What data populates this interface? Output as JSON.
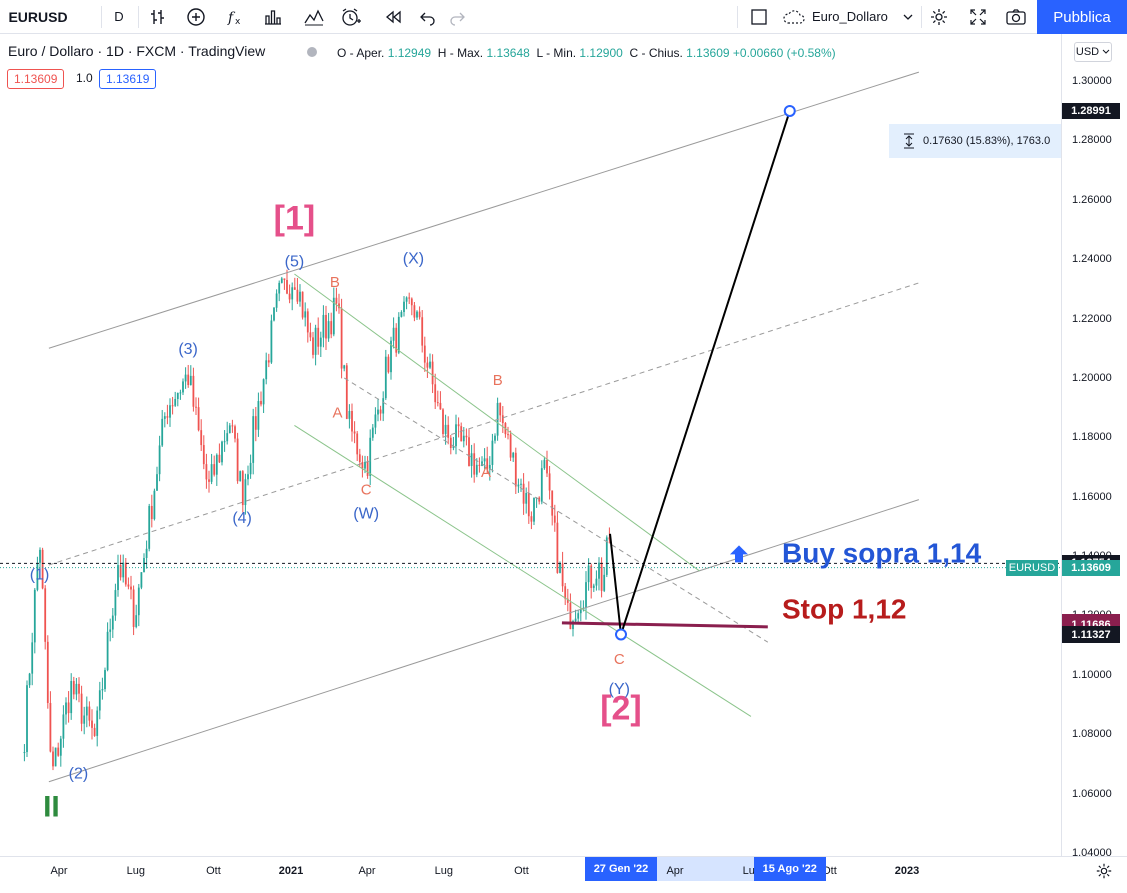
{
  "toolbar": {
    "symbol": "EURUSD",
    "interval": "D",
    "layout_name": "Euro_Dollaro",
    "publish_label": "Pubblica"
  },
  "legend": {
    "title": "Euro / Dollaro · 1D · FXCM · TradingView",
    "open_label": "O - Aper.",
    "open": "1.12949",
    "high_label": "H - Max.",
    "high": "1.13648",
    "low_label": "L - Min.",
    "low": "1.12900",
    "close_label": "C - Chius.",
    "close": "1.13609",
    "change": "+0.00660 (+0.58%)",
    "sell": "1.13609",
    "spread": "1.0",
    "buy": "1.13619"
  },
  "currency": "USD",
  "range_measure": "0.17630 (15.83%), 1763.0",
  "colors": {
    "up": "#26a69a",
    "down": "#ef5350",
    "wave_blue": "#3a66c9",
    "wave_red": "#e8735d",
    "wave_pink": "#e5508a",
    "wave_green": "#2e8b3e",
    "buy_text": "#2356d6",
    "stop_text": "#b71c1c",
    "stop_line": "#8a1f4e",
    "channel_green": "#8bc48b",
    "channel_grey": "#9a9a9a"
  },
  "y_badges": [
    {
      "value": "1.28991",
      "bg": "#131722"
    },
    {
      "value": "1.13754",
      "bg": "#131722"
    },
    {
      "value": "1.13609",
      "bg": "#26a69a"
    },
    {
      "value": "1.11791",
      "bg": "#8a1f4e"
    },
    {
      "value": "1.11686",
      "bg": "#8a1f4e"
    },
    {
      "value": "1.11360",
      "bg": "#131722"
    },
    {
      "value": "1.11327",
      "bg": "#131722"
    }
  ],
  "price_tag": "EURUSD",
  "x_badges": [
    "27 Gen '22",
    "15 Ago '22"
  ],
  "annotations": {
    "buy": "Buy sopra 1,14",
    "stop": "Stop 1,12"
  },
  "wave_labels": [
    {
      "text": "[1]",
      "date": "2021-01-05",
      "price": 1.253,
      "style": "pink-big"
    },
    {
      "text": "[2]",
      "date": "2022-01-27",
      "price": 1.088,
      "style": "pink-big"
    },
    {
      "text": "II",
      "date": "2020-03-23",
      "price": 1.055,
      "style": "green-big"
    },
    {
      "text": "(5)",
      "date": "2021-01-05",
      "price": 1.239,
      "style": "blue"
    },
    {
      "text": "(3)",
      "date": "2020-09-01",
      "price": 1.2095,
      "style": "blue"
    },
    {
      "text": "(4)",
      "date": "2020-11-04",
      "price": 1.1525,
      "style": "blue"
    },
    {
      "text": "(1)",
      "date": "2020-03-09",
      "price": 1.1335,
      "style": "blue"
    },
    {
      "text": "(2)",
      "date": "2020-04-24",
      "price": 1.0665,
      "style": "blue"
    },
    {
      "text": "(X)",
      "date": "2021-05-26",
      "price": 1.24,
      "style": "blue"
    },
    {
      "text": "(W)",
      "date": "2021-03-31",
      "price": 1.154,
      "style": "blue"
    },
    {
      "text": "(Y)",
      "date": "2022-01-25",
      "price": 1.095,
      "style": "blue"
    },
    {
      "text": "B",
      "date": "2021-02-22",
      "price": 1.232,
      "style": "red"
    },
    {
      "text": "A",
      "date": "2021-02-25",
      "price": 1.188,
      "style": "red"
    },
    {
      "text": "C",
      "date": "2021-03-31",
      "price": 1.162,
      "style": "red"
    },
    {
      "text": "B",
      "date": "2021-09-03",
      "price": 1.199,
      "style": "red"
    },
    {
      "text": "A",
      "date": "2021-08-20",
      "price": 1.168,
      "style": "red"
    },
    {
      "text": "C",
      "date": "2022-01-25",
      "price": 1.105,
      "style": "red"
    }
  ],
  "chart_data": {
    "type": "candlestick",
    "symbol": "EURUSD",
    "interval": "1D",
    "ylim": [
      1.04,
      1.31
    ],
    "yticks": [
      1.04,
      1.06,
      1.08,
      1.1,
      1.12,
      1.14,
      1.16,
      1.18,
      1.2,
      1.22,
      1.24,
      1.26,
      1.28,
      1.3
    ],
    "xticks": [
      {
        "label": "Apr",
        "date": "2020-04-01"
      },
      {
        "label": "Lug",
        "date": "2020-07-01"
      },
      {
        "label": "Ott",
        "date": "2020-10-01"
      },
      {
        "label": "2021",
        "date": "2021-01-01"
      },
      {
        "label": "Apr",
        "date": "2021-04-01"
      },
      {
        "label": "Lug",
        "date": "2021-07-01"
      },
      {
        "label": "Ott",
        "date": "2021-10-01"
      },
      {
        "label": "Apr",
        "date": "2022-04-01"
      },
      {
        "label": "Lug",
        "date": "2022-07-01"
      },
      {
        "label": "Ott",
        "date": "2022-10-01"
      },
      {
        "label": "2023",
        "date": "2023-01-01"
      }
    ],
    "price_path": [
      {
        "date": "2020-02-20",
        "price": 1.08
      },
      {
        "date": "2020-03-09",
        "price": 1.147
      },
      {
        "date": "2020-03-23",
        "price": 1.065
      },
      {
        "date": "2020-04-15",
        "price": 1.096
      },
      {
        "date": "2020-05-14",
        "price": 1.078
      },
      {
        "date": "2020-06-10",
        "price": 1.138
      },
      {
        "date": "2020-06-30",
        "price": 1.12
      },
      {
        "date": "2020-08-06",
        "price": 1.19
      },
      {
        "date": "2020-09-01",
        "price": 1.201
      },
      {
        "date": "2020-09-25",
        "price": 1.162
      },
      {
        "date": "2020-10-20",
        "price": 1.186
      },
      {
        "date": "2020-11-04",
        "price": 1.161
      },
      {
        "date": "2020-12-17",
        "price": 1.227
      },
      {
        "date": "2021-01-06",
        "price": 1.235
      },
      {
        "date": "2021-01-25",
        "price": 1.21
      },
      {
        "date": "2021-02-25",
        "price": 1.224
      },
      {
        "date": "2021-03-10",
        "price": 1.184
      },
      {
        "date": "2021-03-31",
        "price": 1.17
      },
      {
        "date": "2021-04-29",
        "price": 1.21
      },
      {
        "date": "2021-05-25",
        "price": 1.226
      },
      {
        "date": "2021-06-17",
        "price": 1.198
      },
      {
        "date": "2021-07-01",
        "price": 1.182
      },
      {
        "date": "2021-07-22",
        "price": 1.177
      },
      {
        "date": "2021-08-20",
        "price": 1.167
      },
      {
        "date": "2021-09-03",
        "price": 1.19
      },
      {
        "date": "2021-09-21",
        "price": 1.172
      },
      {
        "date": "2021-10-12",
        "price": 1.154
      },
      {
        "date": "2021-10-28",
        "price": 1.169
      },
      {
        "date": "2021-11-24",
        "price": 1.119
      },
      {
        "date": "2021-12-31",
        "price": 1.137
      },
      {
        "date": "2022-01-05",
        "price": 1.13
      },
      {
        "date": "2022-01-14",
        "price": 1.148
      }
    ],
    "last_close": 1.13609,
    "projection": [
      {
        "date": "2022-01-14",
        "price": 1.1475
      },
      {
        "date": "2022-01-27",
        "price": 1.1136
      },
      {
        "date": "2022-08-15",
        "price": 1.28991
      }
    ],
    "stop_level": {
      "from": "2021-11-18",
      "to": "2022-07-20",
      "price": 1.1175
    },
    "buy_level": 1.13754,
    "channels": [
      {
        "style": "grey",
        "points": [
          {
            "date": "2020-03-20",
            "price": 1.064
          },
          {
            "date": "2023-01-15",
            "price": 1.159
          }
        ]
      },
      {
        "style": "grey",
        "points": [
          {
            "date": "2020-03-20",
            "price": 1.21
          },
          {
            "date": "2023-01-15",
            "price": 1.303
          }
        ]
      },
      {
        "style": "grey-dashed",
        "points": [
          {
            "date": "2020-03-20",
            "price": 1.137
          },
          {
            "date": "2023-01-15",
            "price": 1.232
          }
        ]
      },
      {
        "style": "green",
        "points": [
          {
            "date": "2021-01-05",
            "price": 1.235
          },
          {
            "date": "2022-04-30",
            "price": 1.135
          }
        ]
      },
      {
        "style": "green",
        "points": [
          {
            "date": "2021-01-05",
            "price": 1.184
          },
          {
            "date": "2022-06-30",
            "price": 1.086
          }
        ]
      },
      {
        "style": "grey-dashed",
        "points": [
          {
            "date": "2021-03-05",
            "price": 1.2
          },
          {
            "date": "2022-07-20",
            "price": 1.111
          }
        ]
      }
    ]
  }
}
